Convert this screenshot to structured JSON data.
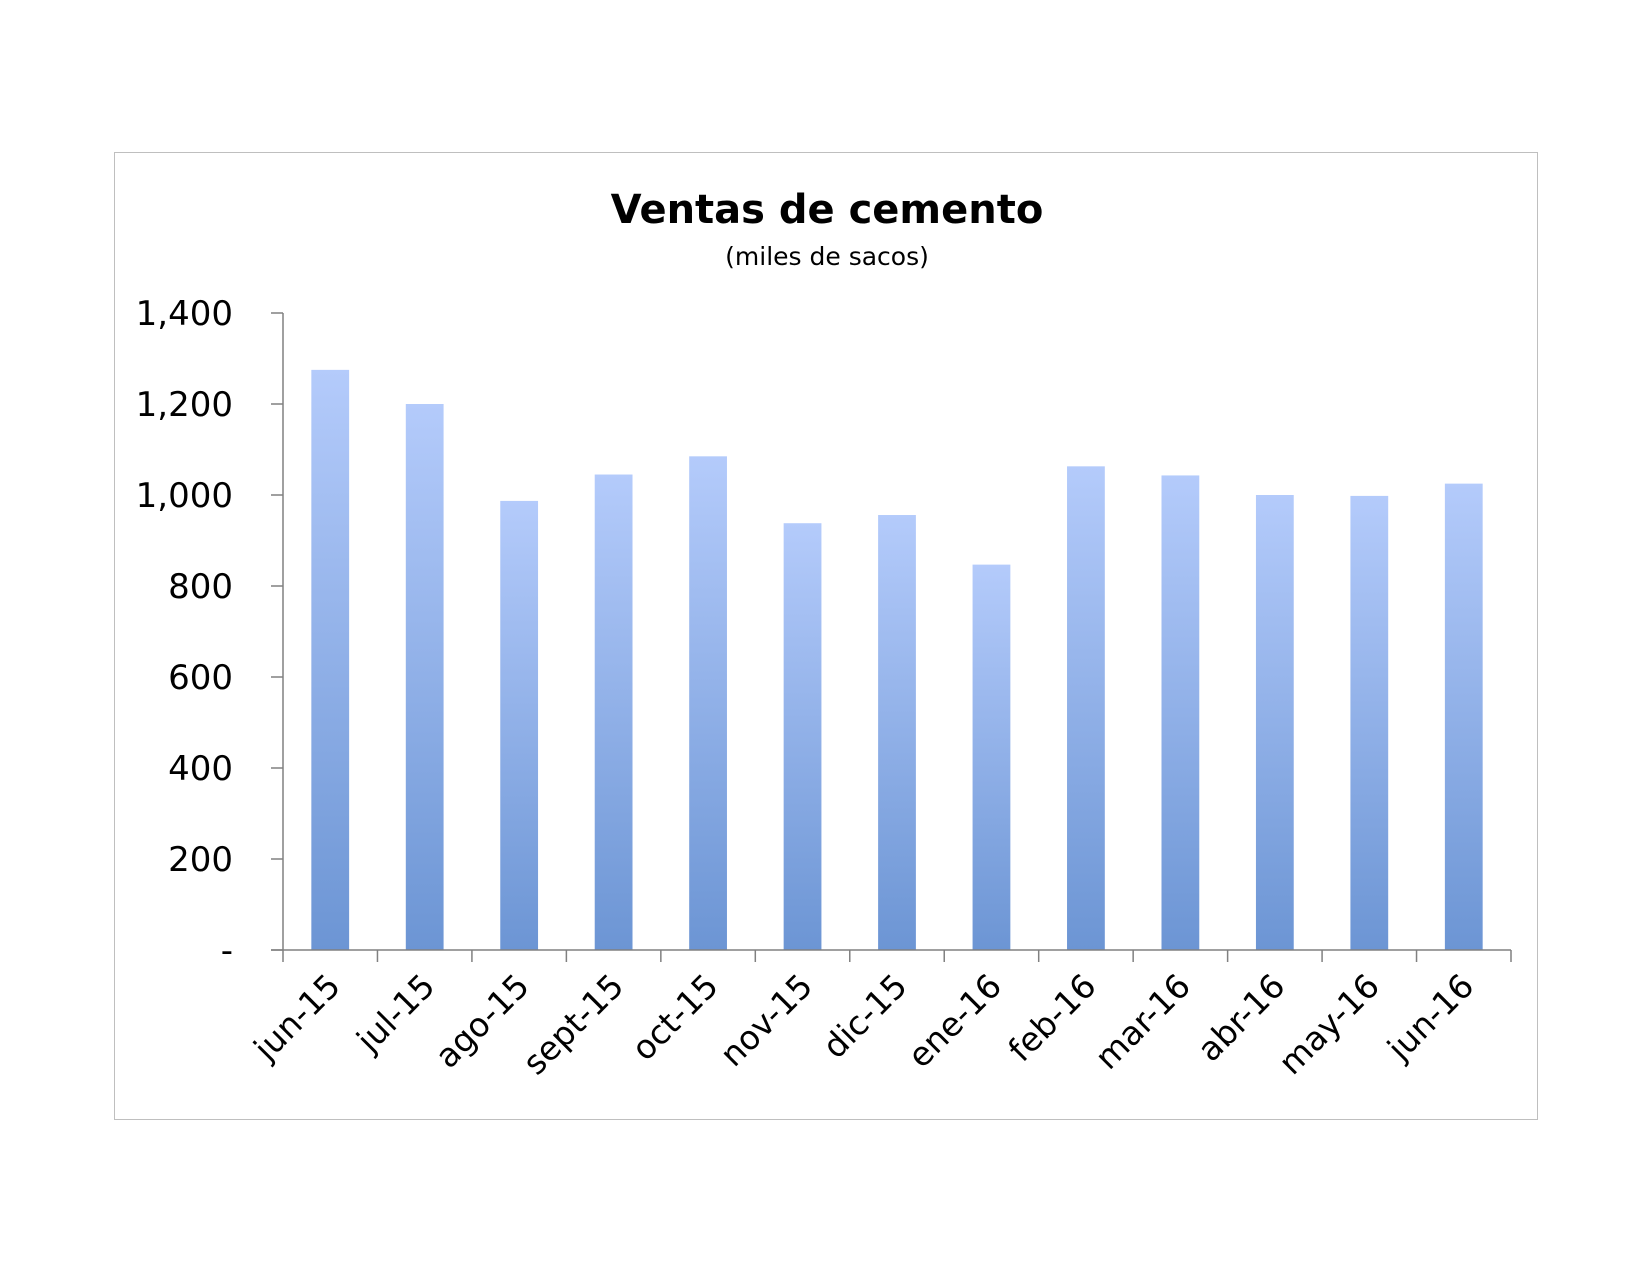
{
  "chart_data": {
    "type": "bar",
    "title": "Ventas de cemento",
    "subtitle": "(miles de sacos)",
    "xlabel": "",
    "ylabel": "",
    "categories": [
      "jun-15",
      "jul-15",
      "ago-15",
      "sept-15",
      "oct-15",
      "nov-15",
      "dic-15",
      "ene-16",
      "feb-16",
      "mar-16",
      "abr-16",
      "may-16",
      "jun-16"
    ],
    "series": [
      {
        "values": [
          1275,
          1200,
          987,
          1045,
          1085,
          938,
          956,
          847,
          1063,
          1043,
          1000,
          998,
          1025
        ]
      }
    ],
    "ylim": [
      0,
      1400
    ],
    "yticks": [
      0,
      200,
      400,
      600,
      800,
      1000,
      1200,
      1400
    ],
    "ytick_labels": [
      "-",
      "200",
      "400",
      "600",
      "800",
      "1,000",
      "1,200",
      "1,400"
    ],
    "grid": false,
    "legend": "none",
    "colors": {
      "bar_top": "#b4cbfb",
      "bar_bottom": "#6c95d4",
      "axis": "#808080",
      "frame": "#bfbfbf"
    }
  }
}
